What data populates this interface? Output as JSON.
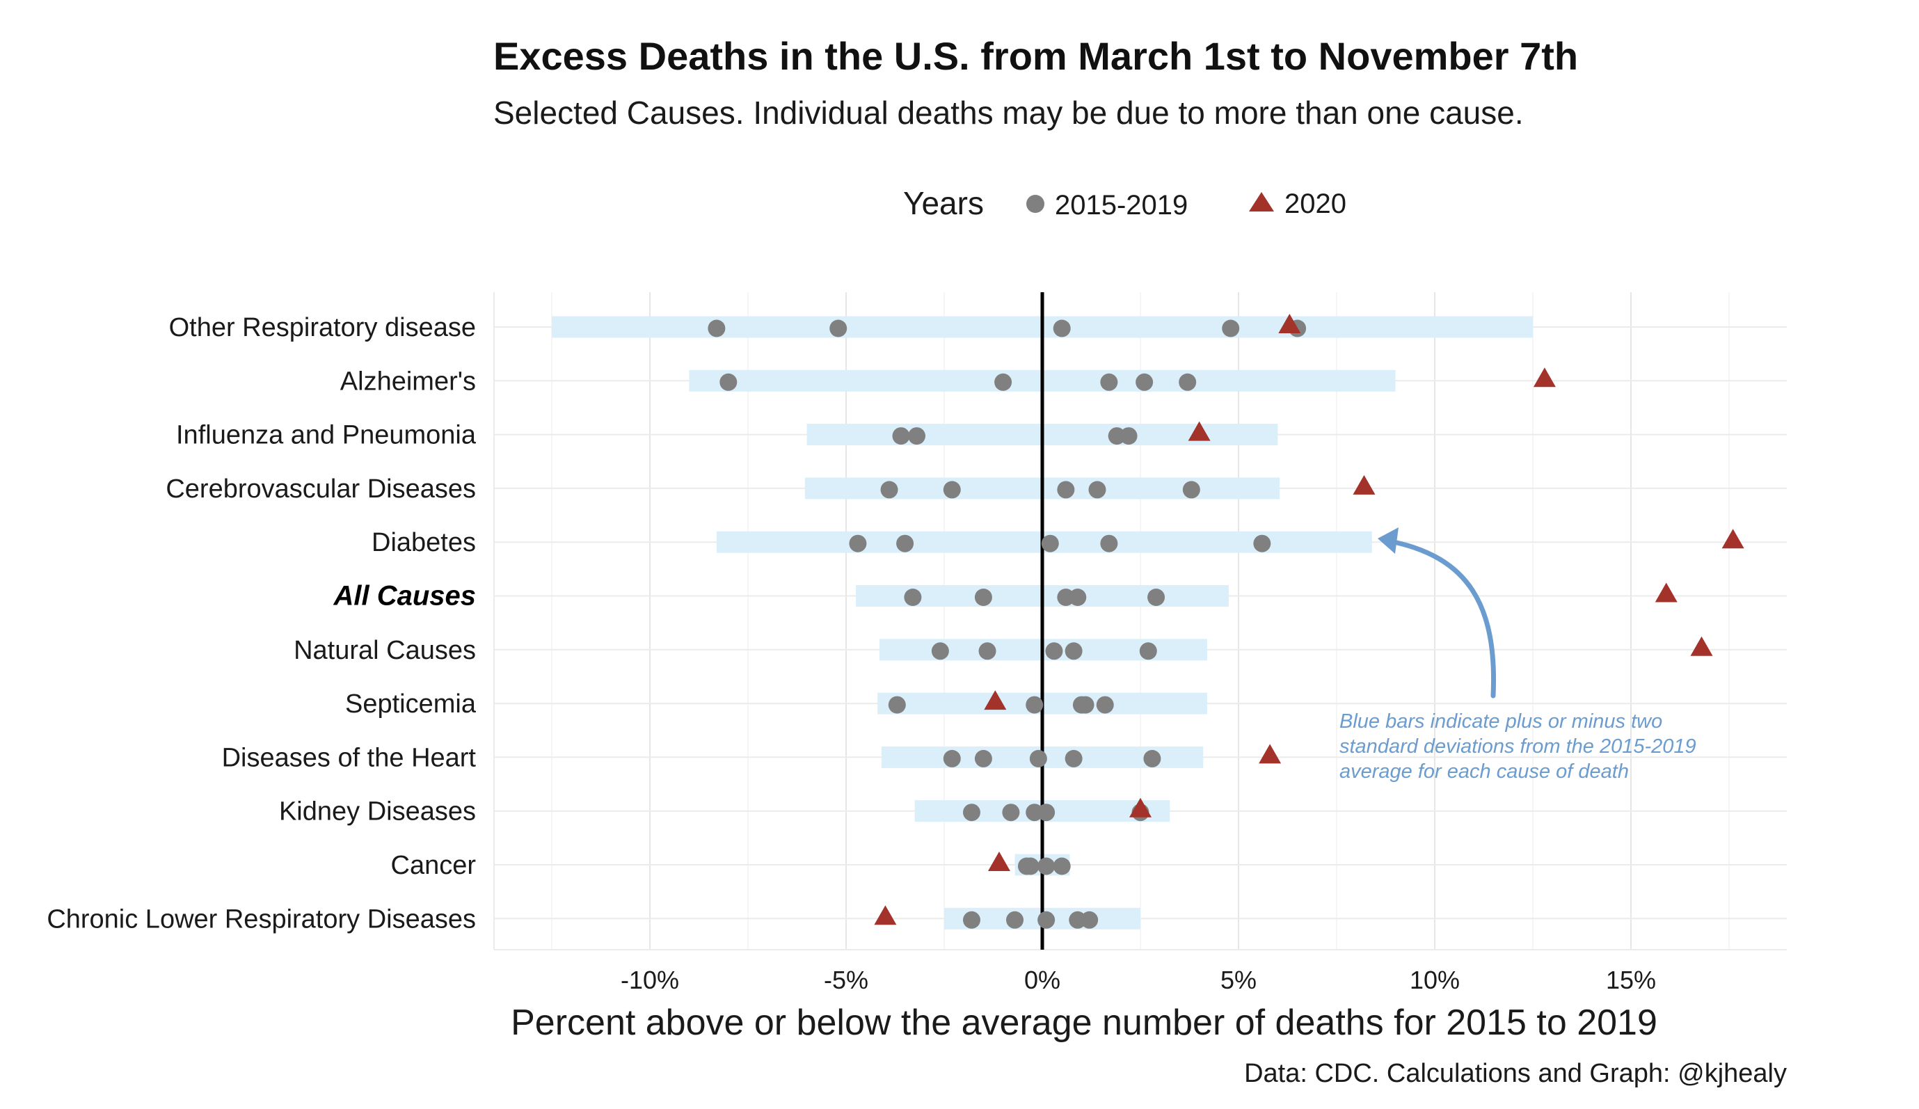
{
  "chart_data": {
    "type": "scatter",
    "title": "Excess Deaths in the U.S. from March 1st to November 7th",
    "subtitle": "Selected Causes. Individual deaths may be due to more than one cause.",
    "xlabel": "Percent above or below the average number of deaths for 2015 to 2019",
    "ylabel": "",
    "caption": "Data: CDC. Calculations and Graph: @kjhealy",
    "xlim": [
      -14,
      19
    ],
    "x_ticks": [
      -10,
      -5,
      0,
      5,
      10,
      15
    ],
    "x_tick_labels": [
      "-10%",
      "-5%",
      "0%",
      "5%",
      "10%",
      "15%"
    ],
    "grid": true,
    "legend": {
      "title": "Years",
      "position": "top",
      "entries": [
        {
          "label": "2015-2019",
          "shape": "circle",
          "color": "#808080"
        },
        {
          "label": "2020",
          "shape": "triangle",
          "color": "#a3322a"
        }
      ]
    },
    "colors": {
      "band": "#dbeffb",
      "baseline_points": "#808080",
      "points_2020": "#a3322a",
      "zero_line": "#000000",
      "annotation": "#6b9ccf"
    },
    "annotation": {
      "text_lines": [
        "Blue bars indicate plus or minus two",
        "standard deviations from the 2015-2019",
        "average for each cause of death"
      ],
      "points_to": "Diabetes"
    },
    "categories": [
      "Other Respiratory disease",
      "Alzheimer's",
      "Influenza and Pneumonia",
      "Cerebrovascular Diseases",
      "Diabetes",
      "All Causes",
      "Natural Causes",
      "Septicemia",
      "Diseases of the Heart",
      "Kidney Diseases",
      "Cancer",
      "Chronic Lower Respiratory Diseases"
    ],
    "highlight_category": "All Causes",
    "series": [
      {
        "name": "band_range",
        "values": [
          [
            -12.5,
            12.5
          ],
          [
            -9,
            9
          ],
          [
            -6,
            6
          ],
          [
            -6.05,
            6.05
          ],
          [
            -8.3,
            8.4
          ],
          [
            -4.75,
            4.75
          ],
          [
            -4.15,
            4.2
          ],
          [
            -4.2,
            4.2
          ],
          [
            -4.1,
            4.1
          ],
          [
            -3.25,
            3.25
          ],
          [
            -0.7,
            0.7
          ],
          [
            -2.5,
            2.5
          ]
        ]
      },
      {
        "name": "2015-2019",
        "values": [
          [
            -8.3,
            -5.2,
            0.5,
            4.8,
            6.5
          ],
          [
            -8,
            -1,
            1.7,
            2.6,
            3.7
          ],
          [
            -3.6,
            -3.2,
            1.9,
            2.2
          ],
          [
            -3.9,
            -2.3,
            0.6,
            1.4,
            3.8
          ],
          [
            -4.7,
            -3.5,
            0.2,
            1.7,
            5.6
          ],
          [
            -3.3,
            -1.5,
            0.6,
            0.9,
            2.9
          ],
          [
            -2.6,
            -1.4,
            0.3,
            0.8,
            2.7
          ],
          [
            -3.7,
            -0.2,
            1,
            1.1,
            1.6
          ],
          [
            -2.3,
            -1.5,
            -0.1,
            0.8,
            2.8
          ],
          [
            -1.8,
            -0.8,
            -0.2,
            0.1,
            2.5
          ],
          [
            -0.4,
            -0.3,
            0.1,
            0.5
          ],
          [
            -1.8,
            -0.7,
            0.1,
            0.9,
            1.2
          ]
        ]
      },
      {
        "name": "2020",
        "values": [
          6.3,
          12.8,
          4,
          8.2,
          17.6,
          15.9,
          16.8,
          -1.2,
          5.8,
          2.5,
          -1.1,
          -4
        ]
      }
    ]
  }
}
